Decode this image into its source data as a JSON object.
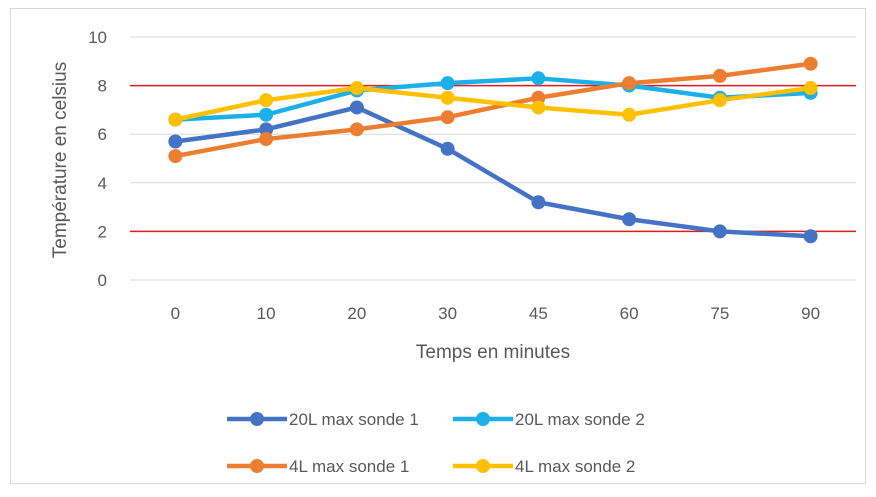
{
  "chart_data": {
    "type": "line",
    "title": "",
    "xlabel": "Temps en minutes",
    "ylabel": "Température en celsius",
    "categories": [
      "0",
      "10",
      "20",
      "30",
      "45",
      "60",
      "75",
      "90"
    ],
    "ylim": [
      0,
      10
    ],
    "yticks": [
      "0",
      "2",
      "4",
      "6",
      "8",
      "10"
    ],
    "grid": true,
    "reference_lines": [
      {
        "y": 8,
        "color": "#e01b1b"
      },
      {
        "y": 2,
        "color": "#e01b1b"
      }
    ],
    "legend_position": "bottom",
    "series": [
      {
        "name": "20L max sonde 1",
        "color": "#4472c4",
        "values": [
          5.7,
          6.2,
          7.1,
          5.4,
          3.2,
          2.5,
          2.0,
          1.8
        ]
      },
      {
        "name": "20L max sonde 2",
        "color": "#1cb0ea",
        "values": [
          6.6,
          6.8,
          7.8,
          8.1,
          8.3,
          8.0,
          7.5,
          7.7
        ]
      },
      {
        "name": "4L max sonde 1",
        "color": "#ed7d31",
        "values": [
          5.1,
          5.8,
          6.2,
          6.7,
          7.5,
          8.1,
          8.4,
          8.9
        ]
      },
      {
        "name": "4L max sonde 2",
        "color": "#ffc000",
        "values": [
          6.6,
          7.4,
          7.9,
          7.5,
          7.1,
          6.8,
          7.4,
          7.9
        ]
      }
    ]
  }
}
